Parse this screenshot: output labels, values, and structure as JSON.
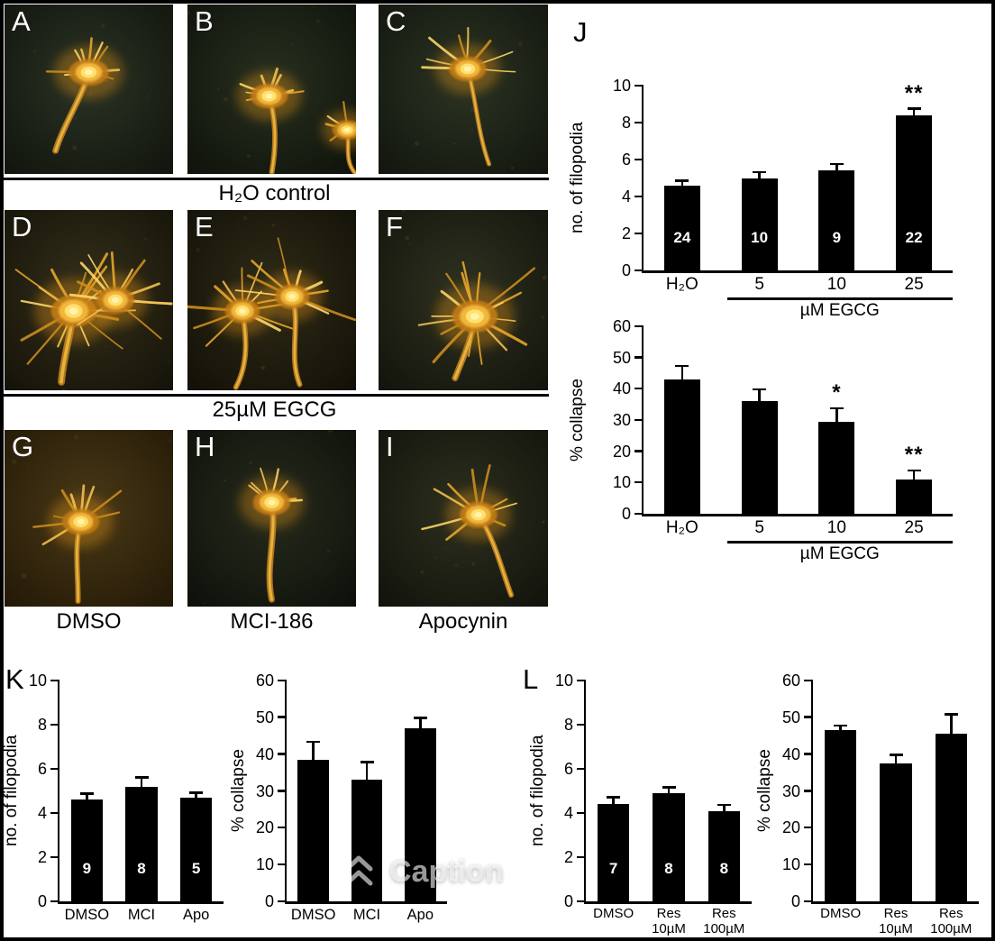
{
  "micrographs": {
    "letters": [
      "A",
      "B",
      "C",
      "D",
      "E",
      "F",
      "G",
      "H",
      "I"
    ],
    "row_captions": [
      "H₂O control",
      "25µM EGCG"
    ],
    "bottom_labels": [
      "DMSO",
      "MCI-186",
      "Apocynin"
    ]
  },
  "panel_letters": {
    "j": "J",
    "k": "K",
    "l": "L"
  },
  "overlay": {
    "caption": "Caption"
  },
  "chart_data": [
    {
      "id": "J-top",
      "type": "bar",
      "categories": [
        "H₂O",
        "5",
        "10",
        "25"
      ],
      "values": [
        4.6,
        5.0,
        5.4,
        8.4
      ],
      "errors": [
        0.3,
        0.35,
        0.4,
        0.4
      ],
      "bar_labels": [
        "24",
        "10",
        "9",
        "22"
      ],
      "significance": [
        "",
        "",
        "",
        "**"
      ],
      "title": "",
      "xlabel": "",
      "ylabel": "no. of filopodia",
      "ylim": [
        0,
        10
      ],
      "ystep": 2,
      "group_label": "µM EGCG",
      "group_span": [
        1,
        3
      ],
      "bar_color": "#000000"
    },
    {
      "id": "J-bottom",
      "type": "bar",
      "categories": [
        "H₂O",
        "5",
        "10",
        "25"
      ],
      "values": [
        43,
        36,
        29.5,
        11
      ],
      "errors": [
        4.5,
        4,
        4.5,
        3
      ],
      "bar_labels": null,
      "significance": [
        "",
        "",
        "*",
        "**"
      ],
      "title": "",
      "xlabel": "",
      "ylabel": "% collapse",
      "ylim": [
        0,
        60
      ],
      "ystep": 10,
      "group_label": "µM EGCG",
      "group_span": [
        1,
        3
      ],
      "bar_color": "#000000"
    },
    {
      "id": "K-left",
      "type": "bar",
      "categories": [
        "DMSO",
        "MCI",
        "Apo"
      ],
      "values": [
        4.6,
        5.2,
        4.7
      ],
      "errors": [
        0.3,
        0.45,
        0.25
      ],
      "bar_labels": [
        "9",
        "8",
        "5"
      ],
      "significance": [
        "",
        "",
        ""
      ],
      "title": "",
      "xlabel": "",
      "ylabel": "no. of filopodia",
      "ylim": [
        0,
        10
      ],
      "ystep": 2,
      "group_label": null,
      "group_span": null,
      "bar_color": "#000000"
    },
    {
      "id": "K-right",
      "type": "bar",
      "categories": [
        "DMSO",
        "MCI",
        "Apo"
      ],
      "values": [
        38.5,
        33,
        47
      ],
      "errors": [
        5,
        5,
        3
      ],
      "bar_labels": null,
      "significance": [
        "",
        "",
        ""
      ],
      "title": "",
      "xlabel": "",
      "ylabel": "% collapse",
      "ylim": [
        0,
        60
      ],
      "ystep": 10,
      "group_label": null,
      "group_span": null,
      "bar_color": "#000000"
    },
    {
      "id": "L-left",
      "type": "bar",
      "categories": [
        "DMSO",
        "Res\n10µM",
        "Res\n100µM"
      ],
      "values": [
        4.4,
        4.9,
        4.1
      ],
      "errors": [
        0.35,
        0.3,
        0.3
      ],
      "bar_labels": [
        "7",
        "8",
        "8"
      ],
      "significance": [
        "",
        "",
        ""
      ],
      "title": "",
      "xlabel": "",
      "ylabel": "no. of filopodia",
      "ylim": [
        0,
        10
      ],
      "ystep": 2,
      "group_label": null,
      "group_span": null,
      "bar_color": "#000000"
    },
    {
      "id": "L-right",
      "type": "bar",
      "categories": [
        "DMSO",
        "Res\n10µM",
        "Res\n100µM"
      ],
      "values": [
        46.5,
        37.5,
        45.5
      ],
      "errors": [
        1.5,
        2.5,
        5.5
      ],
      "bar_labels": null,
      "significance": [
        "",
        "",
        ""
      ],
      "title": "",
      "xlabel": "",
      "ylabel": "% collapse",
      "ylim": [
        0,
        60
      ],
      "ystep": 10,
      "group_label": null,
      "group_span": null,
      "bar_color": "#000000"
    }
  ]
}
